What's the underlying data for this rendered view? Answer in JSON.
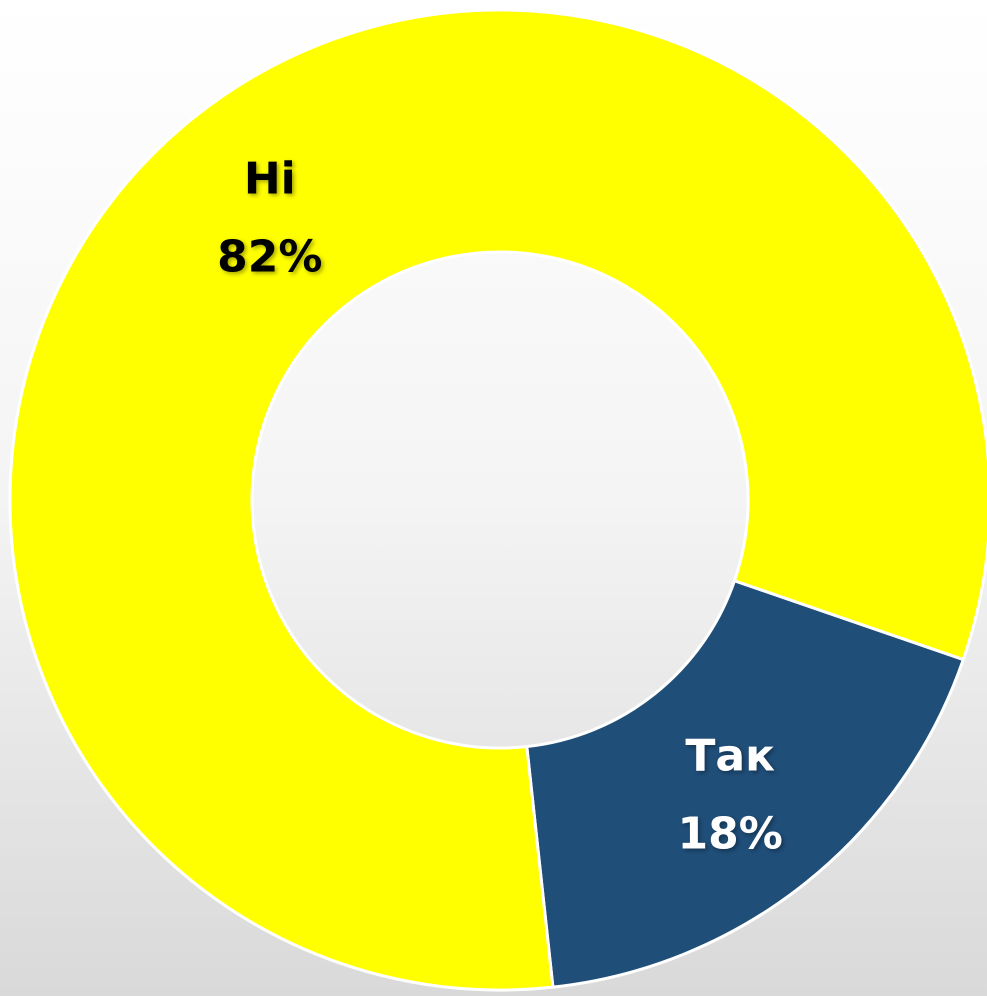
{
  "chart_data": {
    "type": "donut",
    "categories": [
      "Так",
      "Ні"
    ],
    "values": [
      18,
      82
    ],
    "value_labels": [
      "18%",
      "82%"
    ],
    "colors": [
      "#1f4e79",
      "#ffff00"
    ],
    "label_colors": [
      "#ffffff",
      "#000000"
    ]
  }
}
